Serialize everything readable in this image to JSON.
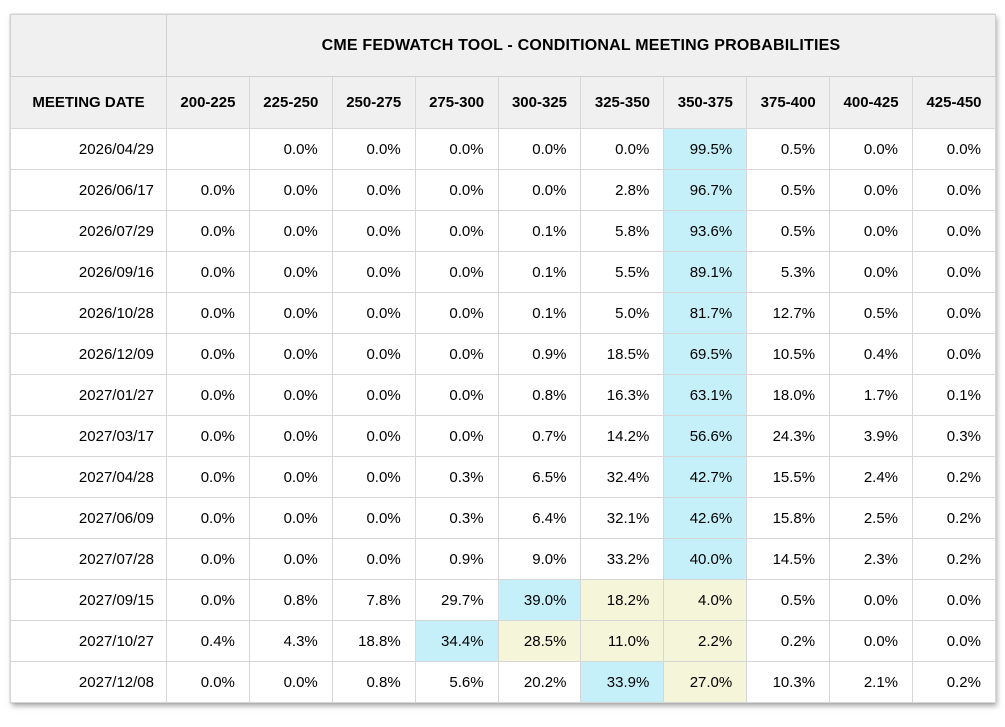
{
  "chart_data": {
    "type": "table",
    "title": "CME FEDWATCH TOOL - CONDITIONAL MEETING PROBABILITIES",
    "row_header": "MEETING DATE",
    "columns": [
      "200-225",
      "225-250",
      "250-275",
      "275-300",
      "300-325",
      "325-350",
      "350-375",
      "375-400",
      "400-425",
      "425-450"
    ],
    "rows": [
      {
        "date": "2026/04/29",
        "values": [
          "",
          "0.0%",
          "0.0%",
          "0.0%",
          "0.0%",
          "0.0%",
          "99.5%",
          "0.5%",
          "0.0%",
          "0.0%"
        ],
        "highlights": [
          "",
          "",
          "",
          "",
          "",
          "",
          "blue",
          "",
          "",
          ""
        ]
      },
      {
        "date": "2026/06/17",
        "values": [
          "0.0%",
          "0.0%",
          "0.0%",
          "0.0%",
          "0.0%",
          "2.8%",
          "96.7%",
          "0.5%",
          "0.0%",
          "0.0%"
        ],
        "highlights": [
          "",
          "",
          "",
          "",
          "",
          "",
          "blue",
          "",
          "",
          ""
        ]
      },
      {
        "date": "2026/07/29",
        "values": [
          "0.0%",
          "0.0%",
          "0.0%",
          "0.0%",
          "0.1%",
          "5.8%",
          "93.6%",
          "0.5%",
          "0.0%",
          "0.0%"
        ],
        "highlights": [
          "",
          "",
          "",
          "",
          "",
          "",
          "blue",
          "",
          "",
          ""
        ]
      },
      {
        "date": "2026/09/16",
        "values": [
          "0.0%",
          "0.0%",
          "0.0%",
          "0.0%",
          "0.1%",
          "5.5%",
          "89.1%",
          "5.3%",
          "0.0%",
          "0.0%"
        ],
        "highlights": [
          "",
          "",
          "",
          "",
          "",
          "",
          "blue",
          "",
          "",
          ""
        ]
      },
      {
        "date": "2026/10/28",
        "values": [
          "0.0%",
          "0.0%",
          "0.0%",
          "0.0%",
          "0.1%",
          "5.0%",
          "81.7%",
          "12.7%",
          "0.5%",
          "0.0%"
        ],
        "highlights": [
          "",
          "",
          "",
          "",
          "",
          "",
          "blue",
          "",
          "",
          ""
        ]
      },
      {
        "date": "2026/12/09",
        "values": [
          "0.0%",
          "0.0%",
          "0.0%",
          "0.0%",
          "0.9%",
          "18.5%",
          "69.5%",
          "10.5%",
          "0.4%",
          "0.0%"
        ],
        "highlights": [
          "",
          "",
          "",
          "",
          "",
          "",
          "blue",
          "",
          "",
          ""
        ]
      },
      {
        "date": "2027/01/27",
        "values": [
          "0.0%",
          "0.0%",
          "0.0%",
          "0.0%",
          "0.8%",
          "16.3%",
          "63.1%",
          "18.0%",
          "1.7%",
          "0.1%"
        ],
        "highlights": [
          "",
          "",
          "",
          "",
          "",
          "",
          "blue",
          "",
          "",
          ""
        ]
      },
      {
        "date": "2027/03/17",
        "values": [
          "0.0%",
          "0.0%",
          "0.0%",
          "0.0%",
          "0.7%",
          "14.2%",
          "56.6%",
          "24.3%",
          "3.9%",
          "0.3%"
        ],
        "highlights": [
          "",
          "",
          "",
          "",
          "",
          "",
          "blue",
          "",
          "",
          ""
        ]
      },
      {
        "date": "2027/04/28",
        "values": [
          "0.0%",
          "0.0%",
          "0.0%",
          "0.3%",
          "6.5%",
          "32.4%",
          "42.7%",
          "15.5%",
          "2.4%",
          "0.2%"
        ],
        "highlights": [
          "",
          "",
          "",
          "",
          "",
          "",
          "blue",
          "",
          "",
          ""
        ]
      },
      {
        "date": "2027/06/09",
        "values": [
          "0.0%",
          "0.0%",
          "0.0%",
          "0.3%",
          "6.4%",
          "32.1%",
          "42.6%",
          "15.8%",
          "2.5%",
          "0.2%"
        ],
        "highlights": [
          "",
          "",
          "",
          "",
          "",
          "",
          "blue",
          "",
          "",
          ""
        ]
      },
      {
        "date": "2027/07/28",
        "values": [
          "0.0%",
          "0.0%",
          "0.0%",
          "0.9%",
          "9.0%",
          "33.2%",
          "40.0%",
          "14.5%",
          "2.3%",
          "0.2%"
        ],
        "highlights": [
          "",
          "",
          "",
          "",
          "",
          "",
          "blue",
          "",
          "",
          ""
        ]
      },
      {
        "date": "2027/09/15",
        "values": [
          "0.0%",
          "0.8%",
          "7.8%",
          "29.7%",
          "39.0%",
          "18.2%",
          "4.0%",
          "0.5%",
          "0.0%",
          "0.0%"
        ],
        "highlights": [
          "",
          "",
          "",
          "",
          "blue",
          "yellow",
          "yellow",
          "",
          "",
          ""
        ]
      },
      {
        "date": "2027/10/27",
        "values": [
          "0.4%",
          "4.3%",
          "18.8%",
          "34.4%",
          "28.5%",
          "11.0%",
          "2.2%",
          "0.2%",
          "0.0%",
          "0.0%"
        ],
        "highlights": [
          "",
          "",
          "",
          "blue",
          "yellow",
          "yellow",
          "yellow",
          "",
          "",
          ""
        ]
      },
      {
        "date": "2027/12/08",
        "values": [
          "0.0%",
          "0.0%",
          "0.8%",
          "5.6%",
          "20.2%",
          "33.9%",
          "27.0%",
          "10.3%",
          "2.1%",
          "0.2%"
        ],
        "highlights": [
          "",
          "",
          "",
          "",
          "",
          "blue",
          "yellow",
          "",
          "",
          ""
        ]
      }
    ],
    "highlight_colors": {
      "blue": "#c5f0f9",
      "yellow": "#f5f5da"
    },
    "header_bg": "#f0f0f0",
    "grid_on": true,
    "legend_position": "none"
  }
}
